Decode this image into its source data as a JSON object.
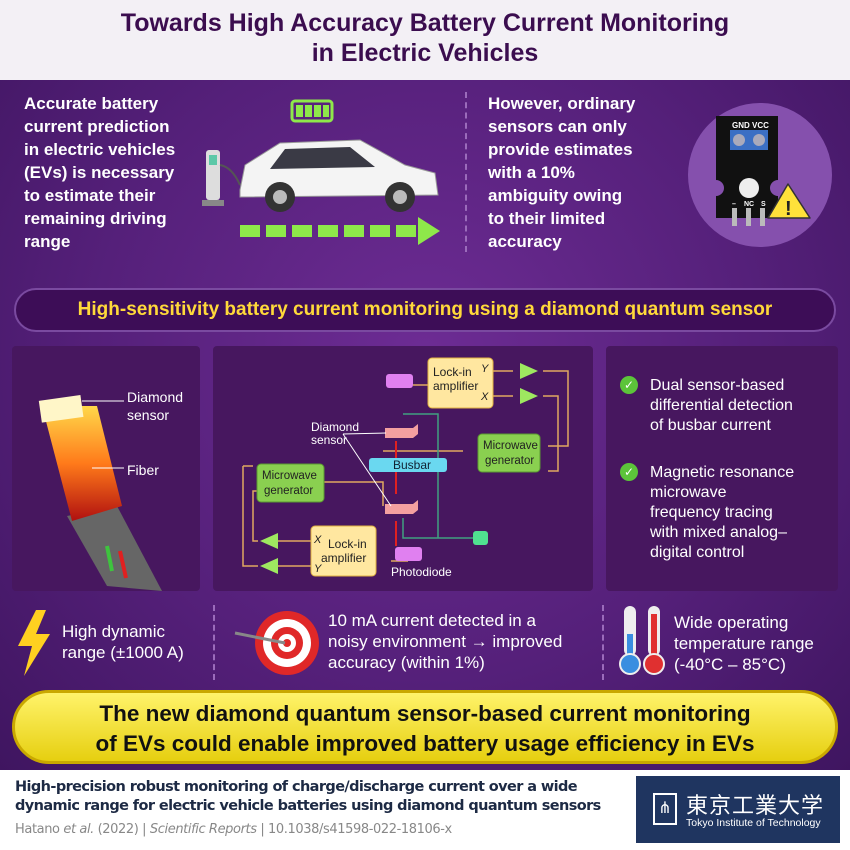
{
  "title": {
    "line1": "Towards High Accuracy Battery Current Monitoring",
    "line2": "in Electric Vehicles"
  },
  "top": {
    "left_text": [
      "Accurate battery",
      "current prediction",
      "in electric vehicles",
      "(EVs) is necessary",
      "to estimate their",
      "remaining driving",
      "range"
    ],
    "right_text": [
      "However, ordinary",
      "sensors can only",
      "provide estimates",
      "with a 10%",
      "ambiguity owing",
      "to their limited",
      "accuracy"
    ],
    "sensor_labels": {
      "gnd": "GND",
      "vcc": "VCC",
      "minus": "–",
      "nc": "NC",
      "s": "S",
      "warning": "!"
    }
  },
  "banner": "High-sensitivity battery current monitoring using a diamond quantum sensor",
  "panel1": {
    "diamond_sensor": [
      "Diamond",
      "sensor"
    ],
    "fiber": "Fiber"
  },
  "diagram": {
    "lockin": [
      "Lock-in",
      "amplifier"
    ],
    "microwave": [
      "Microwave",
      "generator"
    ],
    "diamond_sensor": [
      "Diamond",
      "sensor"
    ],
    "busbar": "Busbar",
    "photodiode": "Photodiode",
    "x": "X",
    "y": "Y"
  },
  "panel3": {
    "items": [
      [
        "Dual sensor-based",
        "differential detection",
        "of busbar current"
      ],
      [
        "Magnetic resonance",
        "microwave",
        "frequency tracing",
        "with mixed analog–",
        "digital control"
      ]
    ],
    "check_color": "#5cc43a"
  },
  "features": [
    {
      "icon": "lightning-icon",
      "lines": [
        "High dynamic",
        "range (±1000 A)"
      ]
    },
    {
      "icon": "target-icon",
      "lines": [
        "10 mA current detected in a",
        "noisy environment → improved",
        "accuracy (within 1%)"
      ]
    },
    {
      "icon": "thermometer-icon",
      "lines": [
        "Wide operating",
        "temperature range",
        "(-40°C – 85°C)"
      ]
    }
  ],
  "conclusion": [
    "The new diamond quantum sensor-based current monitoring",
    "of EVs could enable improved battery usage efficiency in EVs"
  ],
  "footer": {
    "title": [
      "High-precision robust monitoring of charge/discharge current over a wide",
      "dynamic range for electric vehicle batteries using diamond quantum sensors"
    ],
    "authors": "Hatano ",
    "etal": "et al.",
    "year": " (2022) | ",
    "journal": "Scientific Reports",
    "doi": " | 10.1038/s41598-022-18106-x",
    "logo_jp": "東京工業大学",
    "logo_en": "Tokyo Institute of Technology"
  },
  "colors": {
    "accent_yellow": "#ffd93a",
    "purple": "#55207a",
    "green": "#8ee84a"
  }
}
